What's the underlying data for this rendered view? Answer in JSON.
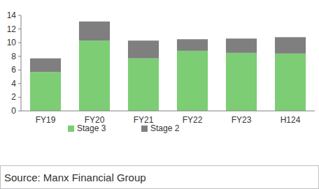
{
  "chart_data": {
    "type": "bar",
    "stacked": true,
    "categories": [
      "FY19",
      "FY20",
      "FY21",
      "FY22",
      "FY23",
      "H124"
    ],
    "series": [
      {
        "name": "Stage 3",
        "color": "#7dcd74",
        "values": [
          5.7,
          10.3,
          7.7,
          8.8,
          8.5,
          8.4
        ]
      },
      {
        "name": "Stage 2",
        "color": "#7f7f7f",
        "values": [
          2.0,
          2.8,
          2.6,
          1.7,
          2.1,
          2.4
        ]
      }
    ],
    "ylim": [
      0,
      14
    ],
    "yticks": [
      0,
      2,
      4,
      6,
      8,
      10,
      12,
      14
    ],
    "grid": false,
    "legend": "bottom",
    "source": "Source: Manx Financial Group"
  }
}
